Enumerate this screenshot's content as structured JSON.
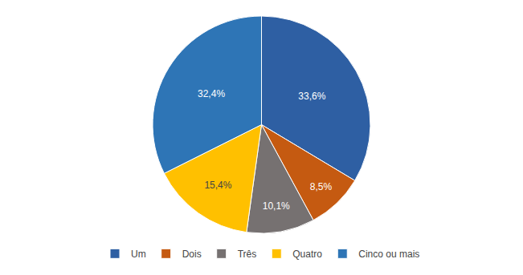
{
  "chart_data": {
    "type": "pie",
    "categories": [
      "Um",
      "Dois",
      "Três",
      "Quatro",
      "Cinco ou mais"
    ],
    "values": [
      33.6,
      8.5,
      10.1,
      15.4,
      32.4
    ],
    "value_labels": [
      "33,6%",
      "8,5%",
      "10,1%",
      "15,4%",
      "32,4%"
    ],
    "colors": [
      "#2E5FA3",
      "#C55A11",
      "#767171",
      "#FFC000",
      "#2E75B6"
    ],
    "data_labels": true,
    "legend": "bottom"
  }
}
